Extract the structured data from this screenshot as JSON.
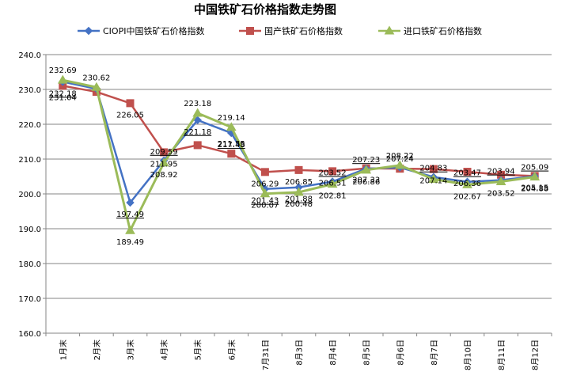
{
  "chart_data": {
    "type": "line",
    "title": "中国铁矿石价格指数走势图",
    "categories": [
      "1月末",
      "2月末",
      "3月末",
      "4月末",
      "5月末",
      "6月末",
      "7月31日",
      "8月3日",
      "8月4日",
      "8月5日",
      "8月6日",
      "8月7日",
      "8月10日",
      "8月11日",
      "8月12日"
    ],
    "ylim": [
      160,
      240
    ],
    "yticks": [
      "160.0",
      "170.0",
      "180.0",
      "190.0",
      "200.0",
      "210.0",
      "220.0",
      "230.0",
      "240.0"
    ],
    "grid": true,
    "legend": "top",
    "series": [
      {
        "name": "CIOPI中国铁矿石价格指数",
        "color": "#4472C4",
        "values": [
          232.18,
          230.2,
          197.49,
          209.59,
          221.18,
          217.48,
          201.43,
          201.88,
          203.52,
          207.23,
          207.6,
          204.83,
          203.47,
          203.94,
          205.09
        ],
        "labels": [
          "232.18",
          "",
          "197.49",
          "209.59",
          "221.18",
          "217.48",
          "201.43",
          "201.88",
          "203.52",
          "207.23",
          "",
          "204.83",
          "203.47",
          "203.94",
          "205.09"
        ]
      },
      {
        "name": "国产铁矿石价格指数",
        "color": "#C0504D",
        "values": [
          231.04,
          229.3,
          226.05,
          211.95,
          214.0,
          211.55,
          206.29,
          206.85,
          206.51,
          207.33,
          207.24,
          207.14,
          206.36,
          205.5,
          205.15
        ],
        "labels": [
          "231.04",
          "",
          "226.05",
          "211.95",
          "",
          "211.55",
          "206.29",
          "206.85",
          "206.51",
          "207.33",
          "207.24",
          "207.14",
          "206.36",
          "",
          "205.15"
        ]
      },
      {
        "name": "进口铁矿石价格指数",
        "color": "#9BBB59",
        "values": [
          232.69,
          230.62,
          189.49,
          208.92,
          223.18,
          219.14,
          200.07,
          200.48,
          202.81,
          206.86,
          208.22,
          204.2,
          202.67,
          203.52,
          204.88
        ],
        "labels": [
          "232.69",
          "230.62",
          "189.49",
          "208.92",
          "223.18",
          "219.14",
          "200.07",
          "200.48",
          "202.81",
          "206.86",
          "208.22",
          "",
          "202.67",
          "203.52",
          "204.88"
        ]
      }
    ]
  }
}
